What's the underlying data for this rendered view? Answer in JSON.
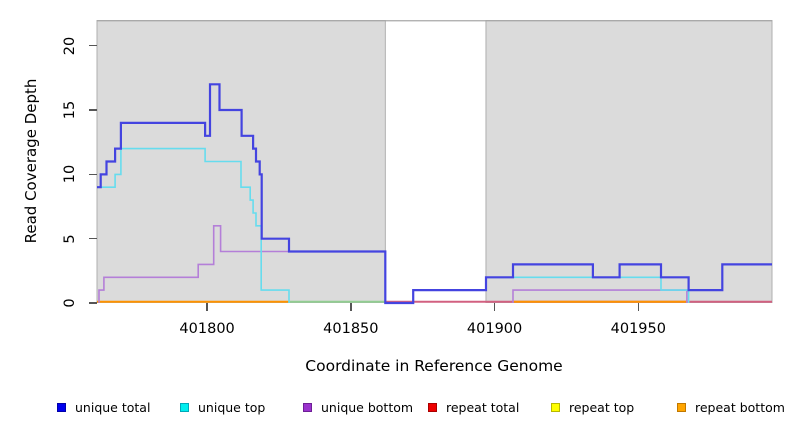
{
  "y_axis": {
    "label": "Read Coverage Depth",
    "tick_labels": [
      "0",
      "5",
      "10",
      "15",
      "20"
    ]
  },
  "x_axis": {
    "label": "Coordinate in Reference Genome",
    "tick_labels": [
      "401800",
      "401850",
      "401900",
      "401950"
    ]
  },
  "legend": [
    {
      "label": "unique total",
      "color": "#0000EE",
      "border": "#0000AA"
    },
    {
      "label": "unique top",
      "color": "#00EEEE",
      "border": "#00A8B8"
    },
    {
      "label": "unique bottom",
      "color": "#9A32CD",
      "border": "#6E1F96"
    },
    {
      "label": "repeat total",
      "color": "#EE0000",
      "border": "#AA0000"
    },
    {
      "label": "repeat top",
      "color": "#FFFF00",
      "border": "#B8B800"
    },
    {
      "label": "repeat bottom",
      "color": "#FFA500",
      "border": "#C07800"
    }
  ],
  "colors": {
    "shaded_region_fill": "#DBDBDB",
    "shaded_region_border": "#AFAFAF",
    "plot_top_border": "#A8A8A8"
  },
  "chart_data": {
    "type": "line",
    "title": "",
    "xlabel": "Coordinate in Reference Genome",
    "ylabel": "Read Coverage Depth",
    "xlim": [
      401761.7,
      401996.5
    ],
    "ylim": [
      0,
      22
    ],
    "x_ticks": [
      401800,
      401850,
      401900,
      401950
    ],
    "y_ticks": [
      0,
      5,
      10,
      15,
      20
    ],
    "grid": false,
    "legend_position": "bottom",
    "shaded_regions": [
      {
        "name": "left-repeat-region",
        "from": 401761.7,
        "to": 401862.0
      },
      {
        "name": "right-repeat-region",
        "from": 401897.0,
        "to": 401996.5
      }
    ],
    "zero_segments": [
      {
        "name": "repeat-total-baseline",
        "color": "#D26080",
        "from": 401862.0,
        "to": 401996.5
      },
      {
        "name": "overlap-baseline-green",
        "color": "#92CD92",
        "from": 401828.5,
        "to": 401862.0
      },
      {
        "name": "repeat-bottom-baseline-left",
        "color": "#FF9300",
        "from": 401761.7,
        "to": 401828.5
      },
      {
        "name": "repeat-bottom-baseline-right",
        "color": "#FF9300",
        "from": 401906.4,
        "to": 401966.9
      }
    ],
    "series": [
      {
        "name": "unique total",
        "color": "#4444E0",
        "width": 2.2,
        "runs": [
          {
            "steps": [
              [
                401761.7,
                9
              ],
              [
                401763,
                10
              ],
              [
                401765,
                11
              ],
              [
                401768,
                12
              ],
              [
                401770,
                14
              ],
              [
                401799.3,
                13
              ],
              [
                401801,
                17
              ],
              [
                401804.3,
                15
              ],
              [
                401812,
                13
              ],
              [
                401816,
                12
              ],
              [
                401817,
                11
              ],
              [
                401818.3,
                10
              ],
              [
                401819,
                5
              ],
              [
                401828.5,
                4
              ],
              [
                401862,
                0
              ],
              [
                401871.7,
                1
              ],
              [
                401897,
                2
              ],
              [
                401906.4,
                3
              ],
              [
                401934.2,
                2
              ],
              [
                401943.5,
                3
              ],
              [
                401957.9,
                2
              ],
              [
                401967.5,
                1
              ],
              [
                401979.2,
                3
              ]
            ],
            "end": 401996.5
          }
        ]
      },
      {
        "name": "unique top",
        "color": "#66DCEE",
        "width": 1.6,
        "runs": [
          {
            "steps": [
              [
                401761.7,
                9
              ],
              [
                401768,
                10
              ],
              [
                401770,
                12
              ],
              [
                401799.3,
                11
              ],
              [
                401811.8,
                9
              ],
              [
                401815,
                8
              ],
              [
                401816,
                7
              ],
              [
                401817,
                6
              ],
              [
                401818.8,
                1
              ],
              [
                401828.5,
                0
              ]
            ],
            "end": 401828.5
          },
          {
            "steps": [
              [
                401897,
                2
              ],
              [
                401957.9,
                1
              ],
              [
                401967.5,
                0
              ]
            ],
            "end": 401967.5
          }
        ]
      },
      {
        "name": "unique bottom",
        "color": "#B47FD8",
        "width": 1.6,
        "runs": [
          {
            "steps": [
              [
                401762.4,
                0
              ],
              [
                401762.4,
                1
              ],
              [
                401764.1,
                2
              ],
              [
                401796.9,
                3
              ],
              [
                401802.3,
                6
              ],
              [
                401804.7,
                4
              ],
              [
                401862,
                0
              ]
            ],
            "end": 401862
          },
          {
            "steps": [
              [
                401906.4,
                0
              ],
              [
                401906.4,
                1
              ],
              [
                401966.9,
                0
              ]
            ],
            "end": 401966.9
          }
        ]
      },
      {
        "name": "repeat total",
        "color": "#D26080",
        "width": 2,
        "runs": []
      },
      {
        "name": "repeat top",
        "color": "#EEEE00",
        "width": 2,
        "runs": []
      },
      {
        "name": "repeat bottom",
        "color": "#FF9300",
        "width": 2,
        "runs": []
      }
    ]
  }
}
